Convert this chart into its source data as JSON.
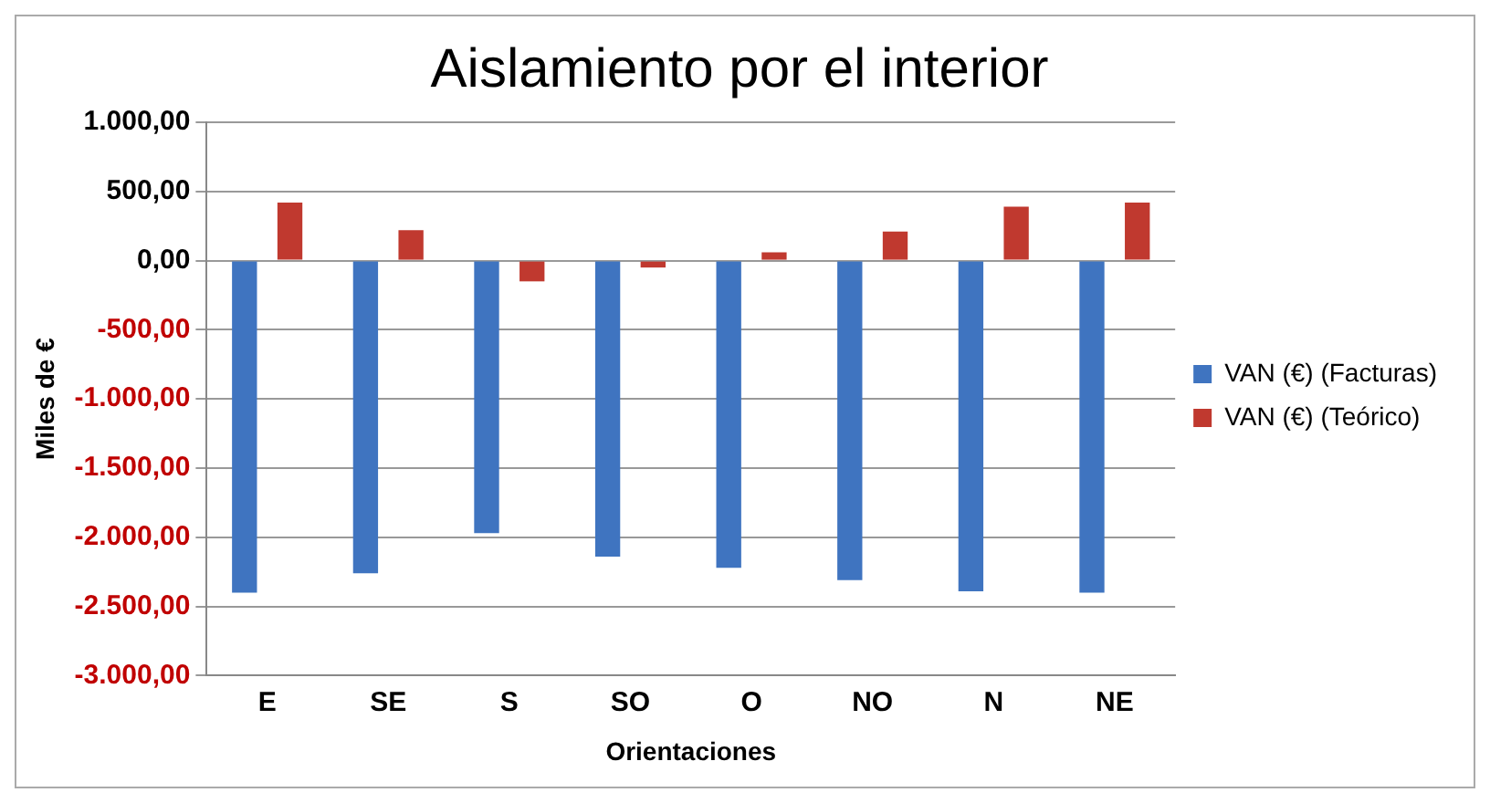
{
  "chart_data": {
    "type": "bar",
    "title": "Aislamiento por el interior",
    "xlabel": "Orientaciones",
    "ylabel": "Miles de €",
    "categories": [
      "E",
      "SE",
      "S",
      "SO",
      "O",
      "NO",
      "N",
      "NE"
    ],
    "series": [
      {
        "name": "VAN (€) (Facturas)",
        "color": "#3f74c0",
        "values": [
          -2400,
          -2260,
          -1970,
          -2140,
          -2220,
          -2310,
          -2390,
          -2400
        ]
      },
      {
        "name": "VAN (€) (Teórico)",
        "color": "#c0392f",
        "values": [
          420,
          220,
          -150,
          -50,
          60,
          210,
          390,
          420
        ]
      }
    ],
    "ylim": [
      -3000,
      1000
    ],
    "yticks": [
      {
        "value": 1000,
        "label": "1.000,00"
      },
      {
        "value": 500,
        "label": "500,00"
      },
      {
        "value": 0,
        "label": "0,00"
      },
      {
        "value": -500,
        "label": "-500,00"
      },
      {
        "value": -1000,
        "label": "-1.000,00"
      },
      {
        "value": -1500,
        "label": "-1.500,00"
      },
      {
        "value": -2000,
        "label": "-2.000,00"
      },
      {
        "value": -2500,
        "label": "-2.500,00"
      },
      {
        "value": -3000,
        "label": "-3.000,00"
      }
    ],
    "grid": "y",
    "legend": "right"
  }
}
